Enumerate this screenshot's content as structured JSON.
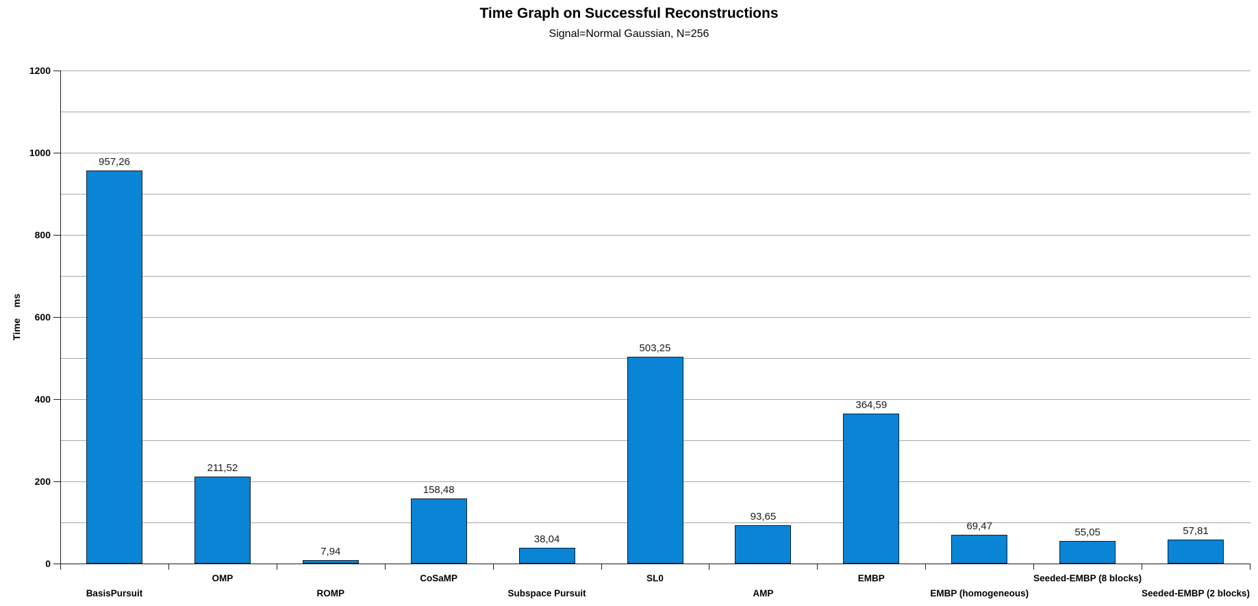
{
  "header": {
    "title": "Time Graph on Successful Reconstructions",
    "subtitle": "Signal=Normal Gaussian, N=256"
  },
  "chart_data": {
    "type": "bar",
    "title": "Time Graph on Successful Reconstructions",
    "subtitle": "Signal=Normal Gaussian, N=256",
    "ylabel": "Time    ms",
    "xlabel": "",
    "ylim": [
      0,
      1200
    ],
    "ytick_step": 200,
    "grid_step": 100,
    "grid": true,
    "legend_position": "none",
    "decimal_separator": ",",
    "bar_color": "#0a84d4",
    "bar_border_color": "#0d1f33",
    "gridline_color": "#a6a6a6",
    "axis_color": "#1a1a1a",
    "categories": [
      "BasisPursuit",
      "OMP",
      "ROMP",
      "CoSaMP",
      "Subspace Pursuit",
      "SL0",
      "AMP",
      "EMBP",
      "EMBP (homogeneous)",
      "Seeded-EMBP (8 blocks)",
      "Seeded-EMBP (2 blocks)"
    ],
    "values": [
      957.26,
      211.52,
      7.94,
      158.48,
      38.04,
      503.25,
      93.65,
      364.59,
      69.47,
      55.05,
      57.81
    ],
    "value_labels": [
      "957,26",
      "211,52",
      "7,94",
      "158,48",
      "38,04",
      "503,25",
      "93,65",
      "364,59",
      "69,47",
      "55,05",
      "57,81"
    ],
    "category_label_row": [
      "lower",
      "upper",
      "lower",
      "upper",
      "lower",
      "upper",
      "lower",
      "upper",
      "lower",
      "upper",
      "lower"
    ],
    "ytick_labels": [
      "0",
      "200",
      "400",
      "600",
      "800",
      "1000",
      "1200"
    ]
  }
}
